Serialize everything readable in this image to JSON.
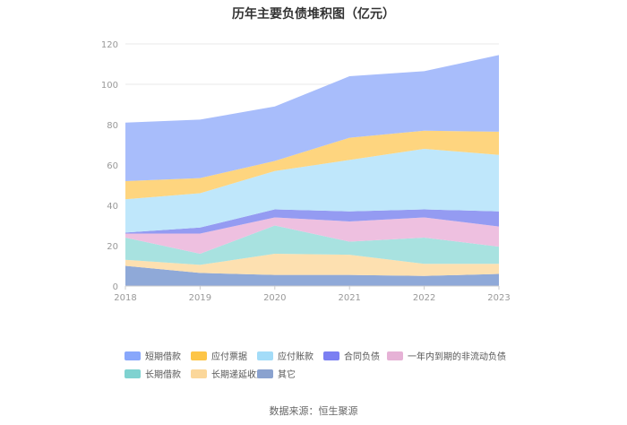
{
  "chart_data": {
    "type": "area",
    "stacked": true,
    "title": "历年主要负债堆积图（亿元）",
    "categories": [
      "2018",
      "2019",
      "2020",
      "2021",
      "2022",
      "2023"
    ],
    "ylim": [
      0,
      120
    ],
    "yticks": [
      "0",
      "20",
      "40",
      "60",
      "80",
      "100",
      "120"
    ],
    "series": [
      {
        "name": "其它",
        "color": "#8fa9d8",
        "values": [
          10,
          6.5,
          5.5,
          5.5,
          5,
          6
        ]
      },
      {
        "name": "长期递延收益",
        "color": "#fde0b0",
        "values": [
          3,
          4,
          10.5,
          10,
          6,
          5
        ]
      },
      {
        "name": "长期借款",
        "color": "#a8e2e0",
        "values": [
          11,
          5.5,
          14,
          6.5,
          13,
          8.5
        ]
      },
      {
        "name": "一年内到期的非流动负债",
        "color": "#eec0e0",
        "values": [
          2,
          10,
          4,
          10,
          10,
          10
        ]
      },
      {
        "name": "合同负债",
        "color": "#949bf2",
        "values": [
          0.5,
          3,
          4,
          5,
          4,
          7.5
        ]
      },
      {
        "name": "应付账款",
        "color": "#bfe7fb",
        "values": [
          16.5,
          17,
          19,
          25.5,
          30,
          28
        ]
      },
      {
        "name": "应付票据",
        "color": "#fed57f",
        "values": [
          9,
          7.5,
          5,
          11,
          9,
          11.5
        ]
      },
      {
        "name": "短期借款",
        "color": "#a8bdfb",
        "values": [
          29,
          29,
          27,
          30.5,
          29.5,
          38
        ]
      }
    ],
    "legend_order": [
      "短期借款",
      "应付票据",
      "应付账款",
      "合同负债",
      "一年内到期的非流动负债",
      "长期借款",
      "长期递延收益",
      "其它"
    ],
    "legend_colors": {
      "短期借款": "#88a7fb",
      "应付票据": "#fdc547",
      "应付账款": "#a3dcf8",
      "合同负债": "#7b7ff2",
      "一年内到期的非流动负债": "#e6b2d6",
      "长期借款": "#7fd2d0",
      "长期递延收益": "#fbd79a",
      "其它": "#8aa2cf"
    },
    "source": "数据来源：恒生聚源"
  }
}
